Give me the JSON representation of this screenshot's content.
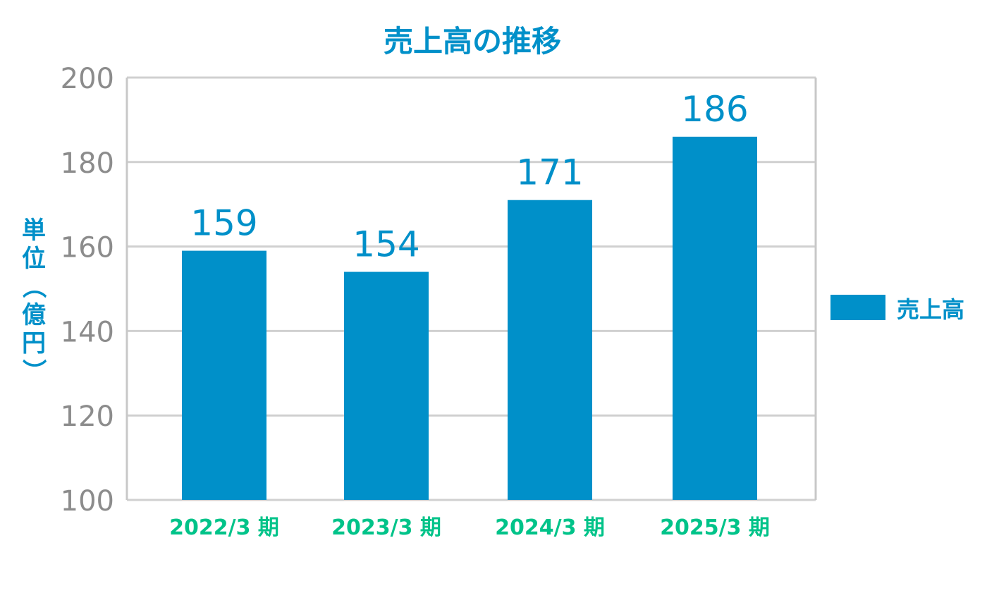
{
  "chart_data": {
    "type": "bar",
    "title": "売上高の推移",
    "xlabel": "",
    "ylabel": "単位（億円）",
    "categories": [
      "2022/3 期",
      "2023/3 期",
      "2024/3 期",
      "2025/3 期"
    ],
    "series": [
      {
        "name": "売上高",
        "values": [
          159,
          154,
          171,
          186
        ],
        "color": "#0090c9"
      }
    ],
    "ylim": [
      100,
      200
    ],
    "yticks": [
      100,
      120,
      140,
      160,
      180,
      200
    ],
    "grid": true,
    "legend": "right"
  },
  "colors": {
    "title": "#0090c9",
    "bar": "#0090c9",
    "data_label": "#0090c9",
    "ylabel": "#0090c9",
    "category_label": "#00c389",
    "tick_label": "#8c8c8c",
    "grid": "#d0d0d0",
    "frame": "#c8c8c8"
  }
}
